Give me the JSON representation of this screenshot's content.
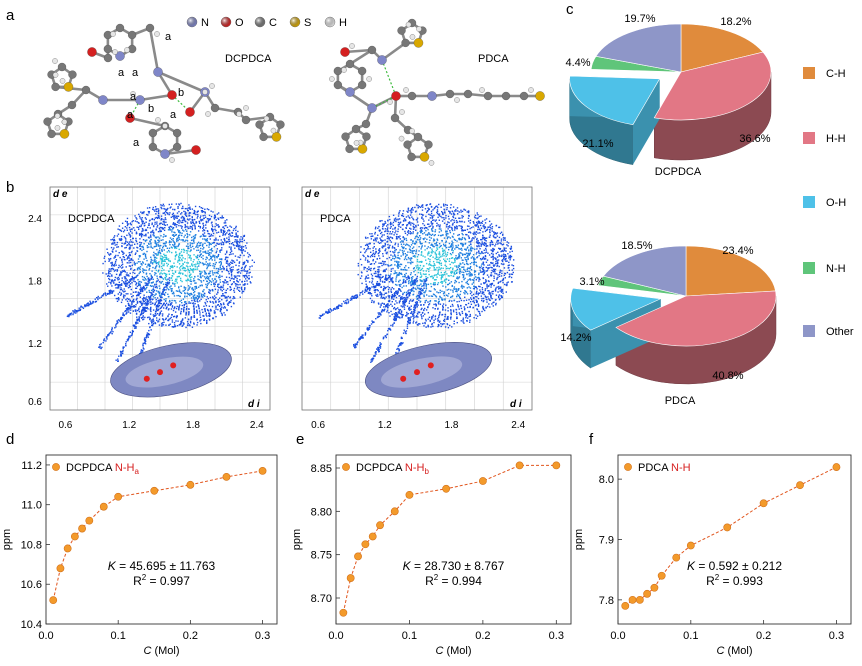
{
  "panel_labels": {
    "a": "a",
    "b": "b",
    "c": "c",
    "d": "d",
    "e": "e",
    "f": "f"
  },
  "legend_atoms": [
    {
      "label": "N",
      "color": "#7f86c8"
    },
    {
      "label": "O",
      "color": "#d42020"
    },
    {
      "label": "C",
      "color": "#777777"
    },
    {
      "label": "S",
      "color": "#d9a800"
    },
    {
      "label": "H",
      "color": "#e6e6e6"
    }
  ],
  "structure_labels": {
    "left": "DCPDCA",
    "right": "PDCA",
    "annotations": [
      "a",
      "a",
      "a",
      "a",
      "b",
      "b",
      "a",
      "a",
      "a"
    ]
  },
  "fingerprint": {
    "x_ticks": [
      "0.6",
      "1.2",
      "1.8",
      "2.4"
    ],
    "y_ticks": [
      "2.4",
      "1.8",
      "1.2",
      "0.6"
    ],
    "y_axis_label": "d e",
    "x_axis_label": "d i",
    "left_title": "DCPDCA",
    "right_title": "PDCA"
  },
  "pie_legend": [
    {
      "label": "C-H",
      "color": "#e08b3c"
    },
    {
      "label": "H-H",
      "color": "#e27785"
    },
    {
      "label": "O-H",
      "color": "#4ec1e8"
    },
    {
      "label": "N-H",
      "color": "#5fc57a"
    },
    {
      "label": "Other",
      "color": "#8e96c8"
    }
  ],
  "chart_data": [
    {
      "type": "pie",
      "title": "DCPDCA",
      "categories": [
        "C-H",
        "H-H",
        "O-H",
        "N-H",
        "Other"
      ],
      "values": [
        18.2,
        36.6,
        21.1,
        4.4,
        19.7
      ],
      "labels": [
        "18.2%",
        "36.6%",
        "21.1%",
        "4.4%",
        "19.7%"
      ]
    },
    {
      "type": "pie",
      "title": "PDCA",
      "categories": [
        "C-H",
        "H-H",
        "O-H",
        "N-H",
        "Other"
      ],
      "values": [
        23.4,
        40.8,
        14.2,
        3.1,
        18.5
      ],
      "labels": [
        "23.4%",
        "40.8%",
        "14.2%",
        "3.1%",
        "18.5%"
      ]
    },
    {
      "type": "scatter",
      "legend": "DCPDCA",
      "legend_suffix": "N-H",
      "legend_sub": "a",
      "xlabel": "C",
      "xlabel_unit": "(Mol)",
      "ylabel": "ppm",
      "xlim": [
        0,
        0.32
      ],
      "ylim": [
        10.4,
        11.25
      ],
      "x_ticks": [
        0.0,
        0.1,
        0.2,
        0.3
      ],
      "y_ticks": [
        10.4,
        10.6,
        10.8,
        11.0,
        11.2
      ],
      "x_tick_labels": [
        "0.0",
        "0.1",
        "0.2",
        "0.3"
      ],
      "y_tick_labels": [
        "10.4",
        "10.6",
        "10.8",
        "11.0",
        "11.2"
      ],
      "x": [
        0.01,
        0.02,
        0.03,
        0.04,
        0.05,
        0.06,
        0.08,
        0.1,
        0.15,
        0.2,
        0.25,
        0.3
      ],
      "y": [
        10.52,
        10.68,
        10.78,
        10.84,
        10.88,
        10.92,
        10.99,
        11.04,
        11.07,
        11.1,
        11.14,
        11.17
      ],
      "annotation_k": "= 45.695 ± 11.763",
      "annotation_r2": "= 0.997"
    },
    {
      "type": "scatter",
      "legend": "DCPDCA",
      "legend_suffix": "N-H",
      "legend_sub": "b",
      "xlabel": "C",
      "xlabel_unit": "(Mol)",
      "ylabel": "ppm",
      "xlim": [
        0,
        0.32
      ],
      "ylim": [
        8.67,
        8.865
      ],
      "x_ticks": [
        0.0,
        0.1,
        0.2,
        0.3
      ],
      "y_ticks": [
        8.7,
        8.75,
        8.8,
        8.85
      ],
      "x_tick_labels": [
        "0.0",
        "0.1",
        "0.2",
        "0.3"
      ],
      "y_tick_labels": [
        "8.70",
        "8.75",
        "8.80",
        "8.85"
      ],
      "x": [
        0.01,
        0.02,
        0.03,
        0.04,
        0.05,
        0.06,
        0.08,
        0.1,
        0.15,
        0.2,
        0.25,
        0.3
      ],
      "y": [
        8.683,
        8.723,
        8.748,
        8.762,
        8.771,
        8.784,
        8.8,
        8.819,
        8.826,
        8.835,
        8.853,
        8.853
      ],
      "annotation_k": "= 28.730 ± 8.767",
      "annotation_r2": "= 0.994"
    },
    {
      "type": "scatter",
      "legend": "PDCA",
      "legend_suffix": "N-H",
      "legend_sub": "",
      "xlabel": "C",
      "xlabel_unit": "(Mol)",
      "ylabel": "ppm",
      "xlim": [
        0,
        0.32
      ],
      "ylim": [
        7.76,
        8.04
      ],
      "x_ticks": [
        0.0,
        0.1,
        0.2,
        0.3
      ],
      "y_ticks": [
        7.8,
        7.9,
        8.0
      ],
      "x_tick_labels": [
        "0.0",
        "0.1",
        "0.2",
        "0.3"
      ],
      "y_tick_labels": [
        "7.8",
        "7.9",
        "8.0"
      ],
      "x": [
        0.01,
        0.02,
        0.03,
        0.04,
        0.05,
        0.06,
        0.08,
        0.1,
        0.15,
        0.2,
        0.25,
        0.3
      ],
      "y": [
        7.79,
        7.8,
        7.8,
        7.81,
        7.82,
        7.84,
        7.87,
        7.89,
        7.92,
        7.96,
        7.99,
        8.02
      ],
      "annotation_k": "= 0.592 ± 0.212",
      "annotation_r2": "= 0.993"
    }
  ]
}
